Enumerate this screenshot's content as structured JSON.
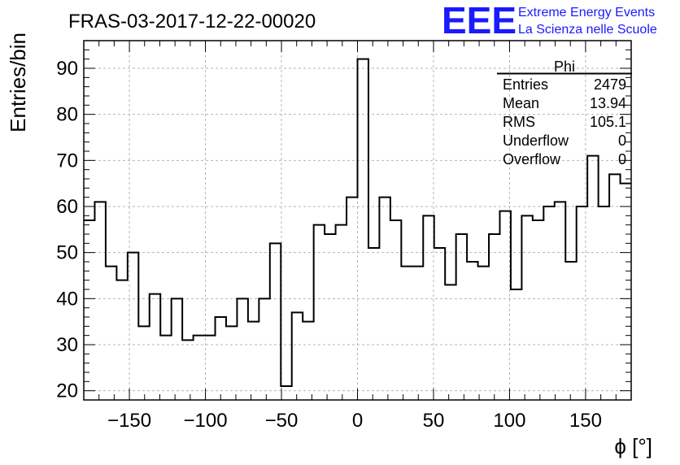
{
  "chart_data": {
    "type": "bar",
    "title": "FRAS-03-2017-12-22-00020",
    "xlabel": "ϕ [°]",
    "ylabel": "Entries/bin",
    "xlim": [
      -180,
      180
    ],
    "ylim": [
      18,
      96
    ],
    "bin_width": 7.2,
    "grid": true,
    "x_ticks": [
      -150,
      -100,
      -50,
      0,
      50,
      100,
      150
    ],
    "x_tick_labels": [
      "−150",
      "−100",
      "−50",
      "0",
      "50",
      "100",
      "150"
    ],
    "y_ticks": [
      20,
      30,
      40,
      50,
      60,
      70,
      80,
      90
    ],
    "y_tick_labels": [
      "20",
      "30",
      "40",
      "50",
      "60",
      "70",
      "80",
      "90"
    ],
    "bin_edges_start": -180,
    "values": [
      57,
      61,
      47,
      44,
      50,
      34,
      41,
      32,
      40,
      31,
      32,
      32,
      36,
      34,
      40,
      35,
      40,
      52,
      21,
      37,
      35,
      56,
      54,
      56,
      62,
      92,
      51,
      62,
      57,
      47,
      47,
      58,
      51,
      43,
      54,
      48,
      47,
      54,
      59,
      42,
      58,
      57,
      60,
      61,
      48,
      60,
      71,
      60,
      67,
      65
    ],
    "stats_box": {
      "title": "Phi",
      "rows": [
        {
          "label": "Entries",
          "value": "2479"
        },
        {
          "label": "Mean",
          "value": "13.94"
        },
        {
          "label": "RMS",
          "value": "105.1"
        },
        {
          "label": "Underflow",
          "value": "0"
        },
        {
          "label": "Overflow",
          "value": "0"
        }
      ]
    },
    "logo": {
      "text": "EEE",
      "line1": "Extreme Energy Events",
      "line2": "La Scienza nelle Scuole",
      "color": "#1a1aff"
    }
  }
}
